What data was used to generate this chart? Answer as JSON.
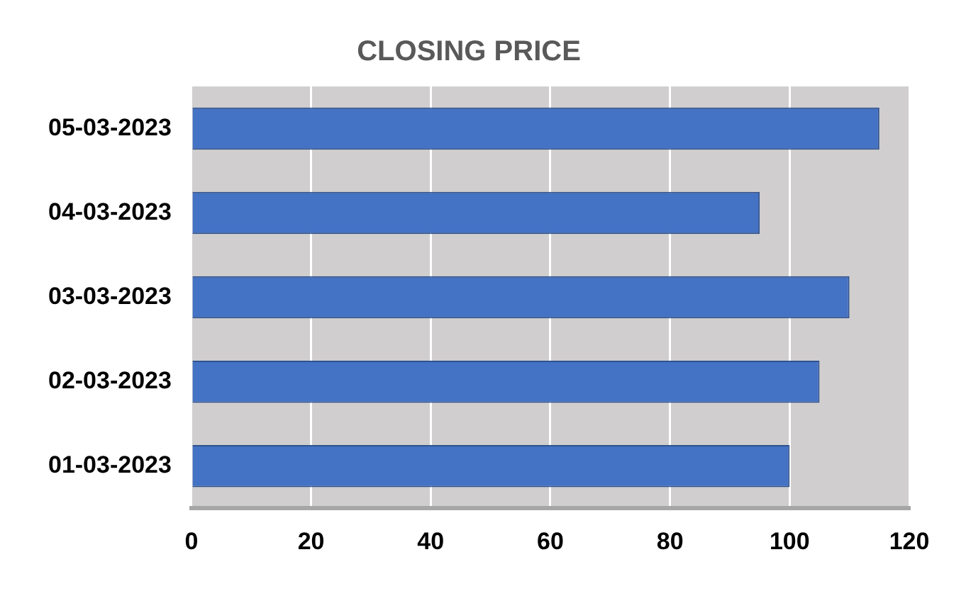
{
  "chart_data": {
    "type": "bar",
    "orientation": "horizontal",
    "title": "CLOSING PRICE",
    "categories": [
      "05-03-2023",
      "04-03-2023",
      "03-03-2023",
      "02-03-2023",
      "01-03-2023"
    ],
    "values": [
      115,
      95,
      110,
      105,
      100
    ],
    "color": "#4472c4",
    "xlim": [
      0,
      120
    ],
    "xticks": [
      0,
      20,
      40,
      60,
      80,
      100,
      120
    ],
    "grid": "x",
    "legend": false
  }
}
